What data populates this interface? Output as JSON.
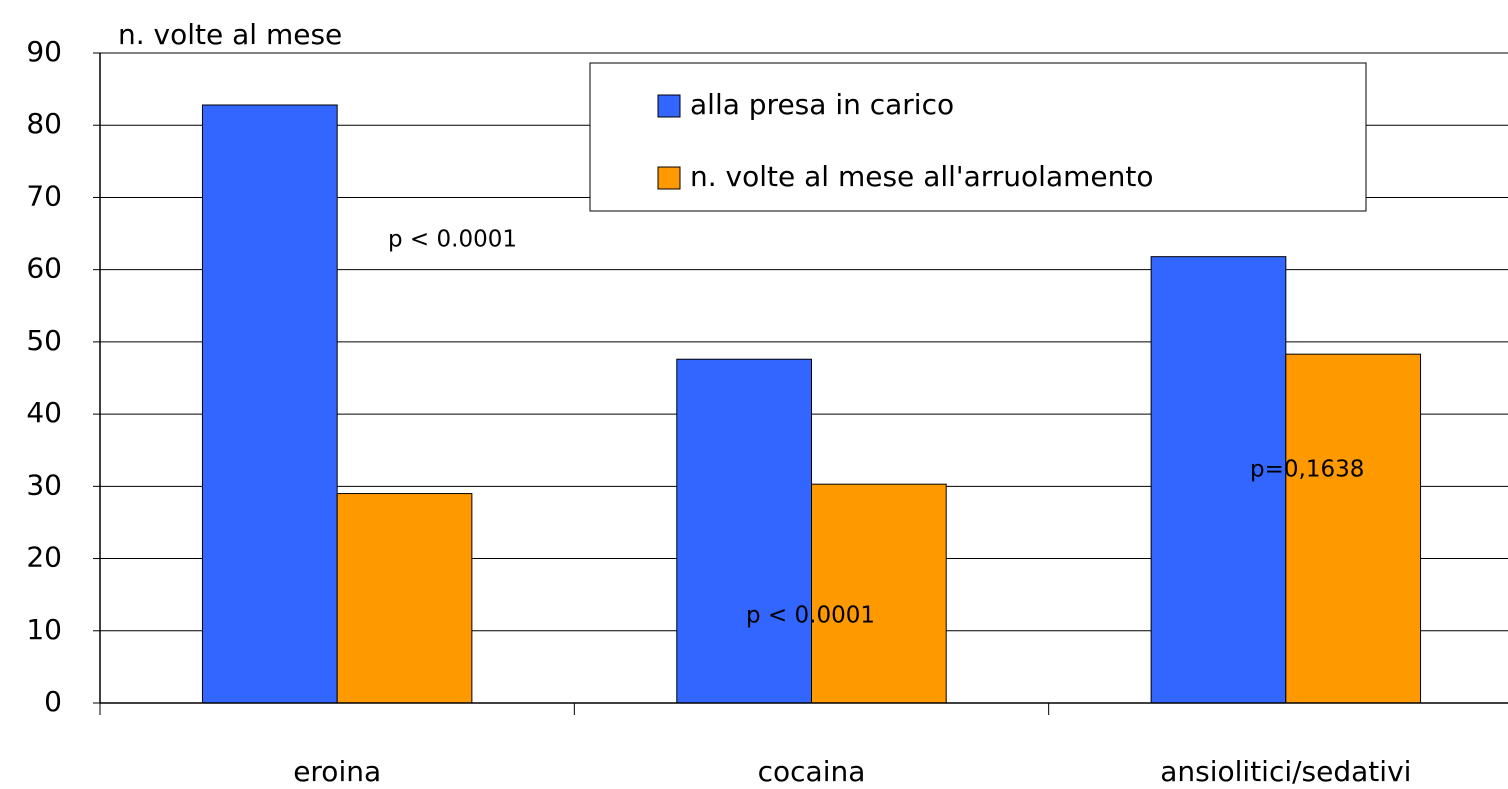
{
  "chart_data": {
    "type": "bar",
    "y_axis_label": "n. volte al mese",
    "categories": [
      "eroina",
      "cocaina",
      "ansiolitici/sedativi"
    ],
    "series": [
      {
        "name": "alla presa in carico",
        "color": "#3366ff",
        "values": [
          82.8,
          47.6,
          61.8
        ]
      },
      {
        "name": "n. volte al mese all'arruolamento",
        "color": "#ff9900",
        "values": [
          29,
          30.3,
          48.3
        ]
      }
    ],
    "annotations": [
      "p < 0.0001",
      "p < 0.0001",
      "p=0,1638"
    ],
    "ylim": [
      0,
      90
    ],
    "yticks": [
      0,
      10,
      20,
      30,
      40,
      50,
      60,
      70,
      80,
      90
    ],
    "grid": true
  }
}
